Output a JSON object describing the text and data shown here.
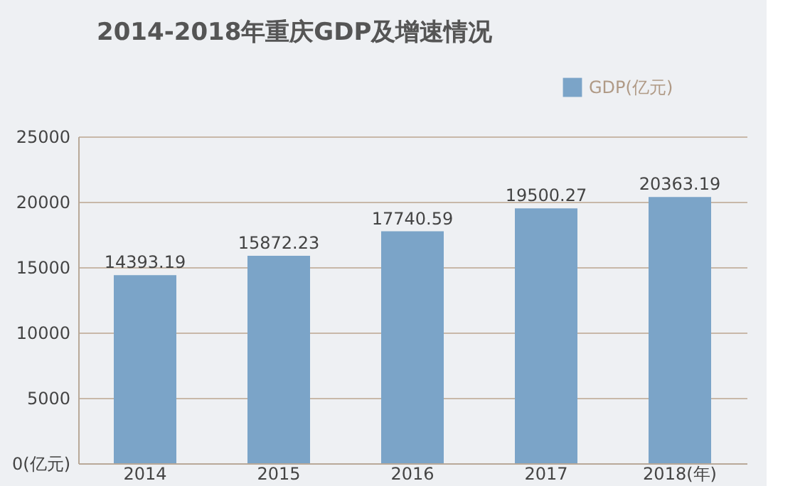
{
  "chart_data": {
    "type": "bar",
    "title": "2014-2018年重庆GDP及增速情况",
    "categories": [
      "2014",
      "2015",
      "2016",
      "2017",
      "2018(年)"
    ],
    "series": [
      {
        "name": "GDP(亿元)",
        "color": "#7ba4c8",
        "values": [
          14393.19,
          15872.23,
          17740.59,
          19500.27,
          20363.19
        ]
      }
    ],
    "ylim": [
      0,
      25000
    ],
    "yticks": [
      {
        "value": 0,
        "label": "0(亿元)"
      },
      5000,
      10000,
      15000,
      20000,
      25000
    ],
    "grid": "y",
    "legend": "top right",
    "data_labels": true
  }
}
